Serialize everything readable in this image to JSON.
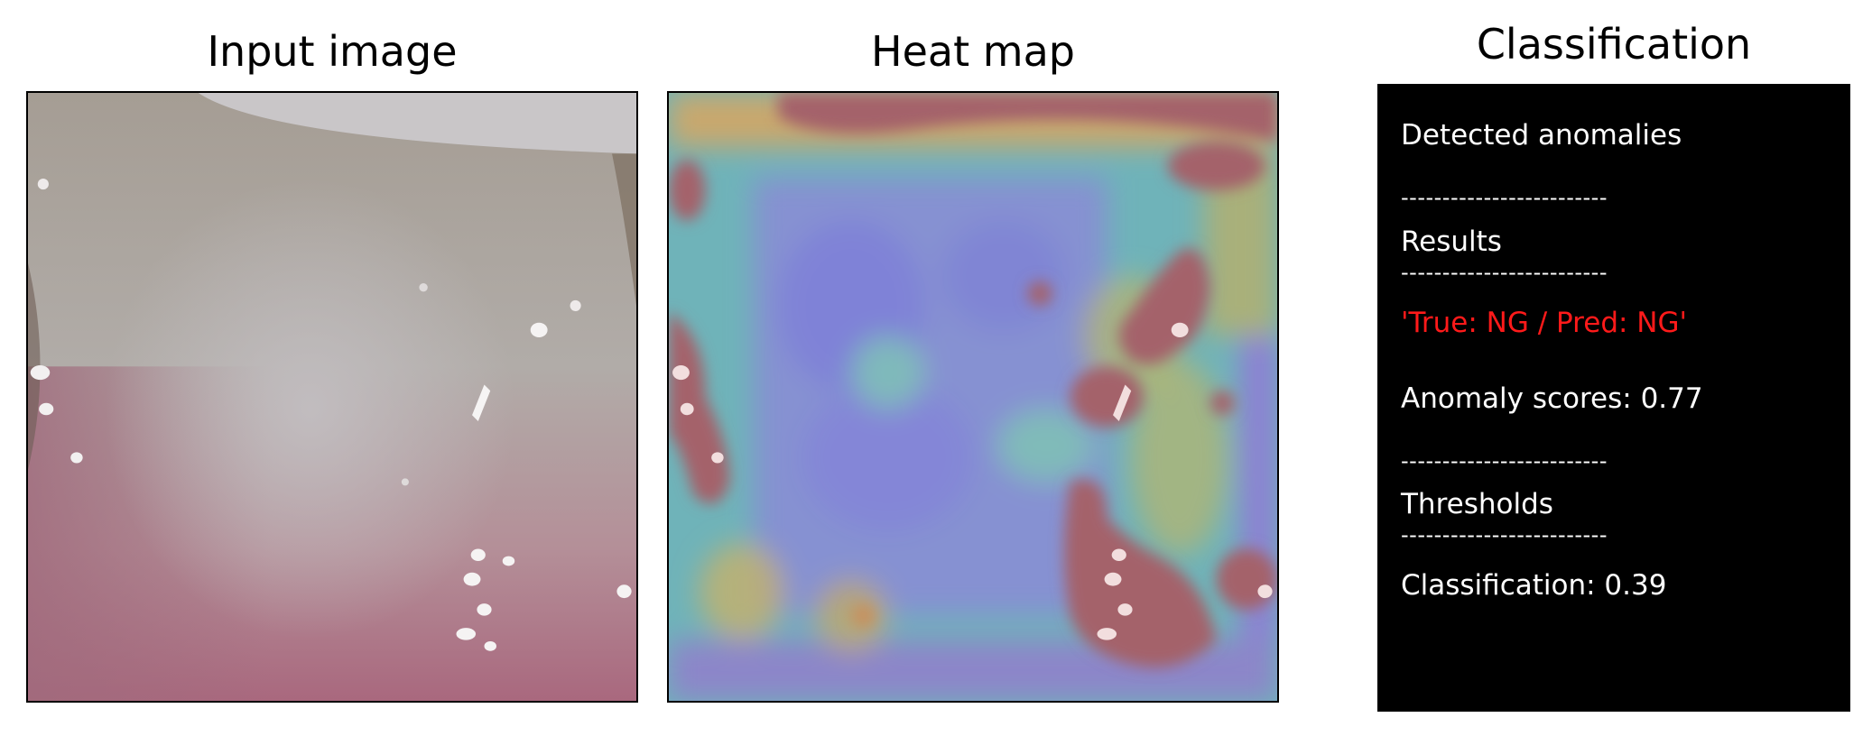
{
  "panels": {
    "input_title": "Input image",
    "heat_title": "Heat map",
    "class_title": "Classification"
  },
  "classification": {
    "heading": "Detected anomalies",
    "separator": "-------------------------",
    "results_label": "Results",
    "prediction": "'True: NG / Pred: NG'",
    "anomaly_score": "Anomaly scores: 0.77",
    "thresholds_label": "Thresholds",
    "classification_threshold": "Classification: 0.39"
  },
  "colors": {
    "prediction_text": "#ff1a1a",
    "box_background": "#000000",
    "box_text": "#ffffff"
  }
}
